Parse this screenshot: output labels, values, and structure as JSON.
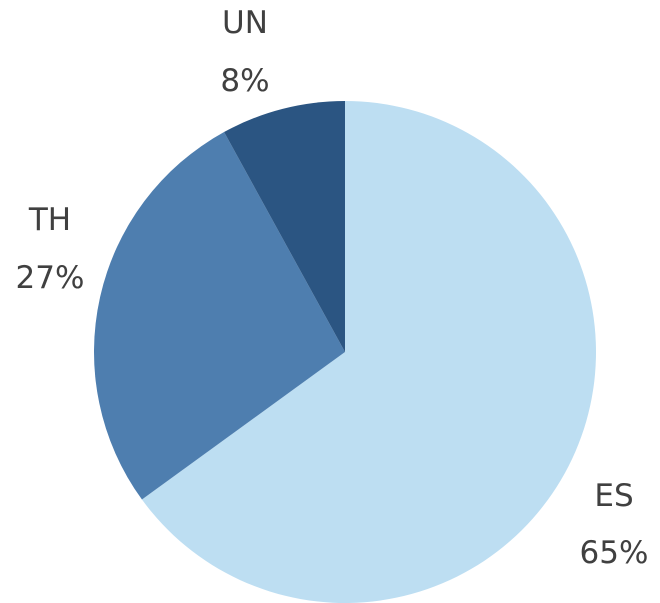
{
  "chart_data": {
    "type": "pie",
    "title": "",
    "slices": [
      {
        "category": "ES",
        "value": 65,
        "value_label": "65%",
        "color": "#BDDEF2"
      },
      {
        "category": "TH",
        "value": 27,
        "value_label": "27%",
        "color": "#4E7EAF"
      },
      {
        "category": "UN",
        "value": 8,
        "value_label": "8%",
        "color": "#2B5582"
      }
    ],
    "start": "12 o'clock",
    "direction": "clockwise",
    "legend": "none",
    "data_labels": "outside, category and percent"
  }
}
